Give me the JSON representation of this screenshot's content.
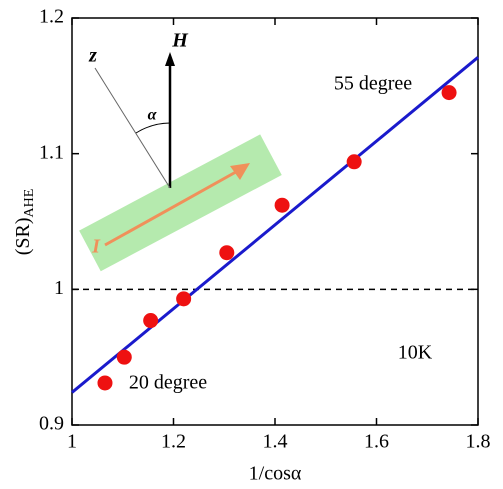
{
  "chart_data": {
    "type": "scatter",
    "x_label": "1/cosα",
    "y_label": {
      "main": "(SR)",
      "sub": "AHE"
    },
    "xlim": [
      1,
      1.8
    ],
    "xticks": [
      1,
      1.2,
      1.4,
      1.6,
      1.8
    ],
    "ylim": [
      0.9,
      1.2
    ],
    "yticks": [
      0.9,
      1,
      1.1,
      1.2
    ],
    "points": {
      "x": [
        1.065,
        1.103,
        1.155,
        1.22,
        1.305,
        1.414,
        1.556,
        1.743
      ],
      "values": [
        0.931,
        0.95,
        0.977,
        0.993,
        1.027,
        1.062,
        1.094,
        1.145
      ],
      "color": "#ee1111"
    },
    "fit": {
      "x": [
        1,
        1.8
      ],
      "values": [
        0.924,
        1.171
      ],
      "color": "#1a1acc"
    },
    "reference_line": 1,
    "annotations": [
      "55 degree",
      "20 degree",
      "10K"
    ],
    "inset": {
      "z": "z",
      "H": "H",
      "alpha": "α",
      "current": "I"
    }
  }
}
